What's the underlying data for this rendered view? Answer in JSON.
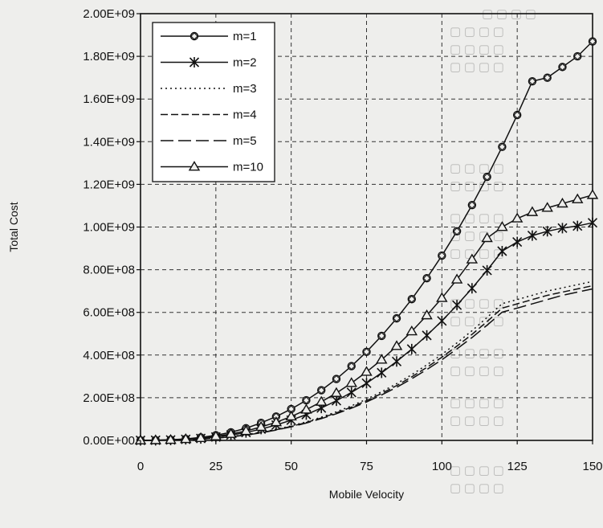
{
  "chart_data": {
    "type": "line",
    "xlabel": "Mobile Velocity",
    "ylabel": "Total Cost",
    "xlim": [
      0,
      150
    ],
    "ylim": [
      0,
      2000000000
    ],
    "x_ticks": [
      "0",
      "25",
      "50",
      "75",
      "100",
      "125",
      "150"
    ],
    "y_ticks": [
      "0.00E+00",
      "2.00E+08",
      "4.00E+08",
      "6.00E+08",
      "8.00E+08",
      "1.00E+09",
      "1.20E+09",
      "1.40E+09",
      "1.60E+09",
      "1.80E+09",
      "2.00E+09"
    ],
    "grid": true,
    "legend_position": "top-left",
    "x": [
      0,
      5,
      10,
      15,
      20,
      25,
      30,
      35,
      40,
      45,
      50,
      55,
      60,
      65,
      70,
      75,
      80,
      85,
      90,
      95,
      100,
      105,
      110,
      115,
      120,
      125,
      130,
      135,
      140,
      145,
      150
    ],
    "series": [
      {
        "name": "m=1",
        "marker": "circle-diamond",
        "line": "solid",
        "values": [
          0,
          1000000,
          3000000,
          7000000,
          14000000,
          24000000,
          38000000,
          57000000,
          82000000,
          112000000,
          147000000,
          188000000,
          235000000,
          288000000,
          348000000,
          415000000,
          490000000,
          572000000,
          662000000,
          760000000,
          866000000,
          980000000,
          1103000000,
          1235000000,
          1376000000,
          1525000000,
          1683000000,
          1700000000,
          1750000000,
          1800000000,
          1870000000
        ]
      },
      {
        "name": "m=2",
        "marker": "asterisk",
        "line": "solid",
        "values": [
          0,
          700000,
          2000000,
          5000000,
          9000000,
          16000000,
          25000000,
          37000000,
          53000000,
          72000000,
          95000000,
          121000000,
          152000000,
          186000000,
          225000000,
          268000000,
          317000000,
          370000000,
          428000000,
          492000000,
          560000000,
          634000000,
          713000000,
          797000000,
          887000000,
          930000000,
          960000000,
          980000000,
          995000000,
          1005000000,
          1020000000
        ]
      },
      {
        "name": "m=3",
        "marker": "none",
        "line": "dotted",
        "values": [
          0,
          500000,
          1500000,
          3500000,
          6500000,
          11000000,
          18000000,
          27000000,
          38000000,
          52000000,
          68000000,
          87000000,
          109000000,
          134000000,
          162000000,
          193000000,
          228000000,
          266000000,
          308000000,
          354000000,
          403000000,
          457000000,
          514000000,
          576000000,
          641000000,
          660000000,
          680000000,
          700000000,
          715000000,
          730000000,
          745000000
        ]
      },
      {
        "name": "m=4",
        "marker": "none",
        "line": "dash-short",
        "values": [
          0,
          500000,
          1400000,
          3300000,
          6300000,
          10500000,
          17000000,
          26000000,
          36500000,
          50000000,
          65500000,
          84000000,
          105000000,
          129000000,
          156000000,
          186000000,
          220000000,
          257000000,
          298000000,
          342000000,
          390000000,
          442000000,
          497000000,
          557000000,
          620000000,
          640000000,
          660000000,
          680000000,
          695000000,
          710000000,
          725000000
        ]
      },
      {
        "name": "m=5",
        "marker": "none",
        "line": "dash-long",
        "values": [
          0,
          480000,
          1350000,
          3200000,
          6000000,
          10200000,
          16500000,
          25000000,
          35500000,
          48500000,
          63500000,
          81500000,
          102000000,
          125000000,
          151000000,
          180000000,
          213000000,
          249000000,
          289000000,
          332000000,
          378000000,
          429000000,
          482000000,
          540000000,
          601000000,
          620000000,
          640000000,
          660000000,
          680000000,
          695000000,
          710000000
        ]
      },
      {
        "name": "m=10",
        "marker": "triangle",
        "line": "solid",
        "values": [
          0,
          800000,
          2500000,
          6000000,
          11000000,
          19000000,
          30000000,
          44000000,
          63000000,
          85000000,
          112000000,
          144000000,
          181000000,
          222000000,
          269000000,
          321000000,
          378000000,
          442000000,
          511000000,
          586000000,
          667000000,
          754000000,
          848000000,
          948000000,
          1000000000,
          1040000000,
          1070000000,
          1090000000,
          1110000000,
          1130000000,
          1150000000
        ]
      }
    ]
  }
}
